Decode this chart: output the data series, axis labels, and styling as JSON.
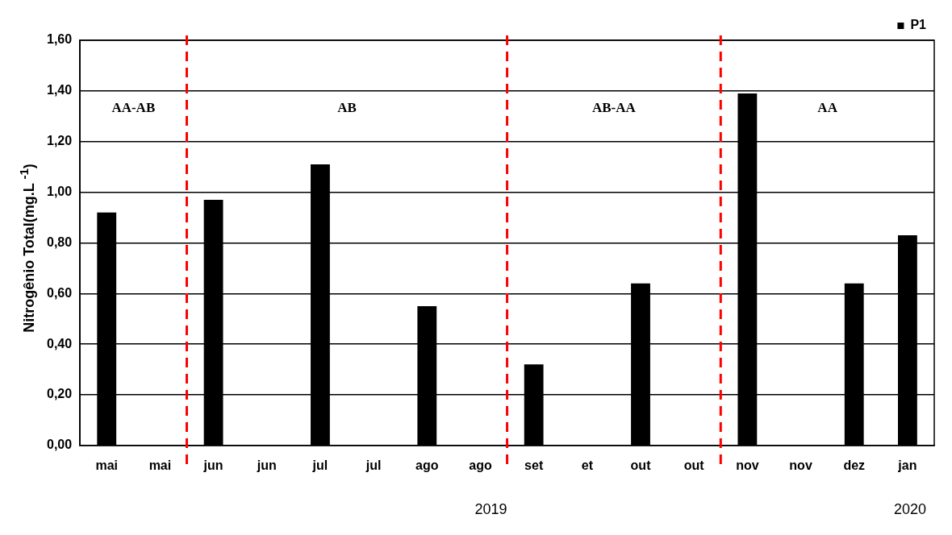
{
  "chart_data": {
    "type": "bar",
    "ylabel": "Nitrogênio Total(mg.L $^{-1}$)",
    "categories": [
      "mai",
      "mai",
      "jun",
      "jun",
      "jul",
      "jul",
      "ago",
      "ago",
      "set",
      "et",
      "out",
      "out",
      "nov",
      "nov",
      "dez",
      "jan"
    ],
    "series": [
      {
        "name": "P1",
        "color": "#000000",
        "values": [
          0.92,
          null,
          0.97,
          null,
          1.11,
          null,
          0.55,
          null,
          0.32,
          null,
          0.64,
          null,
          1.39,
          null,
          0.64,
          0.83
        ]
      }
    ],
    "ylim": [
      0,
      1.6
    ],
    "yticks": [
      {
        "value": 0,
        "label": "0,00"
      },
      {
        "value": 0.2,
        "label": "0,20"
      },
      {
        "value": 0.4,
        "label": "0,40"
      },
      {
        "value": 0.6,
        "label": "0,60"
      },
      {
        "value": 0.8,
        "label": "0,80"
      },
      {
        "value": 1.0,
        "label": "1,00"
      },
      {
        "value": 1.2,
        "label": "1,20"
      },
      {
        "value": 1.4,
        "label": "1,40"
      },
      {
        "value": 1.6,
        "label": "1,60"
      }
    ],
    "annotations": [
      "AA-AB",
      "AB",
      "AB-AA",
      "AA",
      "2019",
      "2020"
    ],
    "grid": "y",
    "legend": "top right"
  }
}
